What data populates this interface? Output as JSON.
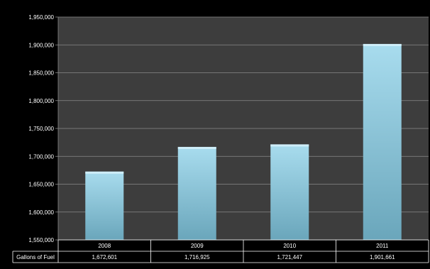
{
  "chart_data": {
    "type": "bar",
    "categories": [
      "2008",
      "2009",
      "2010",
      "2011"
    ],
    "series": [
      {
        "name": "Gallons of Fuel",
        "values": [
          1672601,
          1716925,
          1721447,
          1901661
        ],
        "value_labels": [
          "1,672,601",
          "1,716,925",
          "1,721,447",
          "1,901,661"
        ]
      }
    ],
    "ylim": [
      1550000,
      1950000
    ],
    "yticks": [
      1550000,
      1600000,
      1650000,
      1700000,
      1750000,
      1800000,
      1850000,
      1900000,
      1950000
    ],
    "ytick_labels": [
      "1,550,000",
      "1,600,000",
      "1,650,000",
      "1,700,000",
      "1,750,000",
      "1,800,000",
      "1,850,000",
      "1,900,000",
      "1,950,000"
    ],
    "grid": true,
    "legend": "data-table",
    "colors": {
      "background": "#000000",
      "plot_area": "#3d3d3d",
      "gridline": "#8a8a8a",
      "bar_top": "#a8dcee",
      "bar_bottom": "#6aa6bb",
      "text": "#ffffff"
    }
  }
}
